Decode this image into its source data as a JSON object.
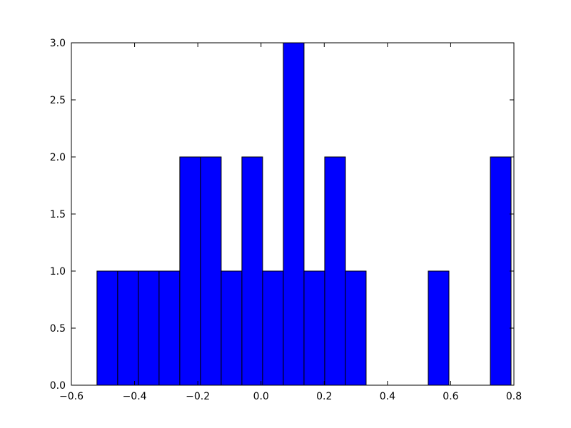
{
  "chart_data": {
    "type": "histogram",
    "bins": [
      -0.519,
      -0.4535,
      -0.388,
      -0.3225,
      -0.257,
      -0.1915,
      -0.126,
      -0.0605,
      0.005,
      0.0705,
      0.136,
      0.2015,
      0.267,
      0.3325,
      0.398,
      0.4635,
      0.529,
      0.5945,
      0.66,
      0.7255,
      0.791
    ],
    "values": [
      1,
      1,
      1,
      1,
      2,
      2,
      1,
      2,
      1,
      3,
      1,
      2,
      1,
      0,
      0,
      0,
      1,
      0,
      0,
      2
    ],
    "color": "#0000ff",
    "xlim": [
      -0.6,
      0.8
    ],
    "xticks": [
      {
        "value": -0.6,
        "label": "−0.6"
      },
      {
        "value": -0.4,
        "label": "−0.4"
      },
      {
        "value": -0.2,
        "label": "−0.2"
      },
      {
        "value": 0,
        "label": "0.0"
      },
      0.2,
      0.4,
      0.6,
      0.8
    ],
    "ylim": [
      0,
      3
    ],
    "yticks": [
      {
        "value": 0,
        "label": "0.0"
      },
      0.5,
      {
        "value": 1,
        "label": "1.0"
      },
      1.5,
      {
        "value": 2,
        "label": "2.0"
      },
      2.5,
      {
        "value": 3,
        "label": "3.0"
      }
    ],
    "grid": false
  }
}
